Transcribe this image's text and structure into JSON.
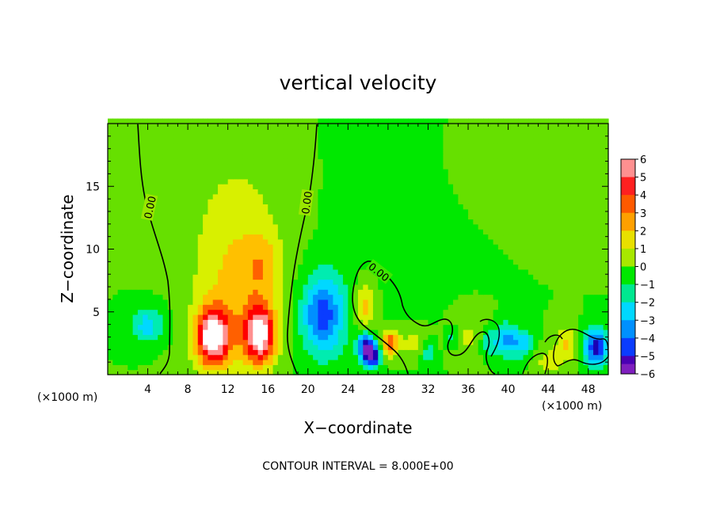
{
  "chart_data": {
    "type": "heatmap",
    "title": "vertical velocity",
    "xlabel": "X−coordinate",
    "ylabel": "Z−coordinate",
    "x_unit_left": "(×1000 m)",
    "x_unit_right": "(×1000 m)",
    "xlim": [
      0,
      50
    ],
    "ylim": [
      0,
      20
    ],
    "x_ticks": [
      4,
      8,
      12,
      16,
      20,
      24,
      28,
      32,
      36,
      40,
      44,
      48
    ],
    "y_ticks": [
      5,
      10,
      15
    ],
    "note": "CONTOUR INTERVAL = 8.000E+00",
    "contour_label": "0.00",
    "colorbar": {
      "range": [
        -6,
        6
      ],
      "ticks": [
        "6",
        "5",
        "4",
        "3",
        "2",
        "1",
        "0",
        "−1",
        "−2",
        "−3",
        "−4",
        "−5",
        "−6"
      ]
    },
    "features": [
      {
        "x": 10.5,
        "z": 3.0,
        "w": 6.5,
        "sx": 1.2,
        "sz": 1.6
      },
      {
        "x": 15.2,
        "z": 3.2,
        "w": 6.2,
        "sx": 1.1,
        "sz": 1.6
      },
      {
        "x": 12.8,
        "z": 6.5,
        "w": 2.0,
        "sx": 3.0,
        "sz": 4.5
      },
      {
        "x": 15.5,
        "z": 8.8,
        "w": 1.5,
        "sx": 1.2,
        "sz": 1.8
      },
      {
        "x": 13.0,
        "z": 14.0,
        "w": 0.8,
        "sx": 4.0,
        "sz": 5.0
      },
      {
        "x": 21.5,
        "z": 4.8,
        "w": -4.5,
        "sx": 1.5,
        "sz": 2.2
      },
      {
        "x": 4.0,
        "z": 4.0,
        "w": -2.5,
        "sx": 1.2,
        "sz": 1.0
      },
      {
        "x": 25.8,
        "z": 2.2,
        "w": -5.5,
        "sx": 0.6,
        "sz": 0.8
      },
      {
        "x": 26.5,
        "z": 1.5,
        "w": -5.5,
        "sx": 0.5,
        "sz": 0.6
      },
      {
        "x": 25.8,
        "z": 5.5,
        "w": 2.5,
        "sx": 0.8,
        "sz": 1.4
      },
      {
        "x": 28.2,
        "z": 2.5,
        "w": 3.8,
        "sx": 0.6,
        "sz": 0.8
      },
      {
        "x": 30.5,
        "z": 2.5,
        "w": 1.5,
        "sx": 1.0,
        "sz": 1.0
      },
      {
        "x": 32.0,
        "z": 1.8,
        "w": -2.0,
        "sx": 0.5,
        "sz": 0.6
      },
      {
        "x": 36.0,
        "z": 3.0,
        "w": 1.2,
        "sx": 1.5,
        "sz": 1.5
      },
      {
        "x": 34.5,
        "z": 3.0,
        "w": -2.0,
        "sx": 0.5,
        "sz": 0.6
      },
      {
        "x": 38.0,
        "z": 2.5,
        "w": -2.0,
        "sx": 0.6,
        "sz": 0.8
      },
      {
        "x": 39.8,
        "z": 2.8,
        "w": -3.5,
        "sx": 0.8,
        "sz": 0.9
      },
      {
        "x": 41.5,
        "z": 2.5,
        "w": -2.5,
        "sx": 0.7,
        "sz": 0.8
      },
      {
        "x": 44.0,
        "z": 1.0,
        "w": 1.5,
        "sx": 1.0,
        "sz": 0.8
      },
      {
        "x": 45.8,
        "z": 2.5,
        "w": 2.0,
        "sx": 0.8,
        "sz": 1.0
      },
      {
        "x": 48.8,
        "z": 2.2,
        "w": -5.5,
        "sx": 0.8,
        "sz": 1.0
      },
      {
        "x": 28.0,
        "z": 10.0,
        "w": -0.3,
        "sx": 5.0,
        "sz": 8.0
      },
      {
        "x": 44.0,
        "z": 17.0,
        "w": 0.5,
        "sx": 6.0,
        "sz": 3.0
      }
    ]
  },
  "colors": {
    "scale": [
      "#7f1fbf",
      "#1a00b4",
      "#0a3cff",
      "#0090ff",
      "#00d8ff",
      "#00ecb0",
      "#00e800",
      "#66e000",
      "#d8f000",
      "#ffc000",
      "#ff6000",
      "#ff0000",
      "#ff9090",
      "#ffffff"
    ]
  }
}
